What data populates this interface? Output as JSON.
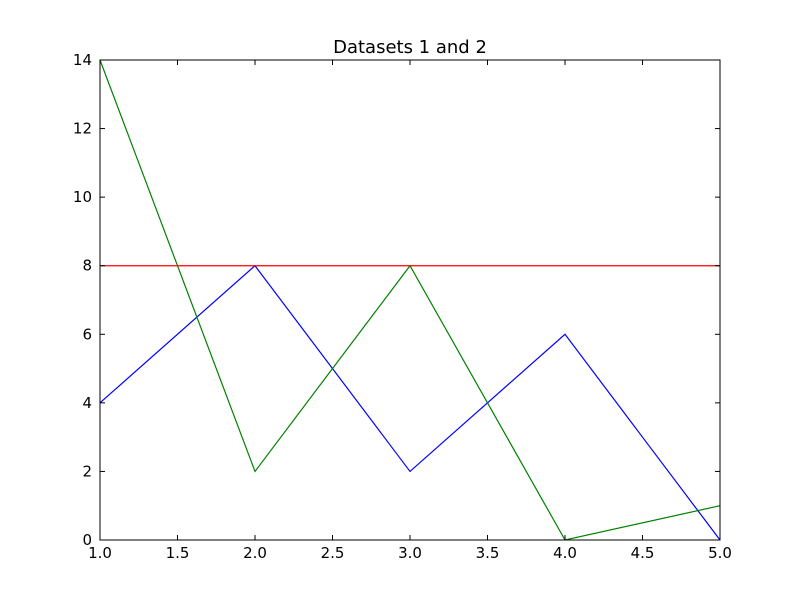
{
  "chart_data": {
    "type": "line",
    "title": "Datasets 1 and 2",
    "xlabel": "",
    "ylabel": "",
    "xlim": [
      1.0,
      5.0
    ],
    "ylim": [
      0,
      14
    ],
    "grid": false,
    "x_ticks": [
      "1.0",
      "1.5",
      "2.0",
      "2.5",
      "3.0",
      "3.5",
      "4.0",
      "4.5",
      "5.0"
    ],
    "y_ticks": [
      "0",
      "2",
      "4",
      "6",
      "8",
      "10",
      "12",
      "14"
    ],
    "x": [
      1,
      2,
      3,
      4,
      5
    ],
    "series": [
      {
        "values": [
          4,
          8,
          2,
          6,
          0
        ],
        "color": "#0000ff"
      },
      {
        "values": [
          14,
          2,
          8,
          0,
          1
        ],
        "color": "#008000"
      },
      {
        "values": [
          8,
          8,
          8,
          8,
          8
        ],
        "color": "#ff0000"
      }
    ]
  }
}
